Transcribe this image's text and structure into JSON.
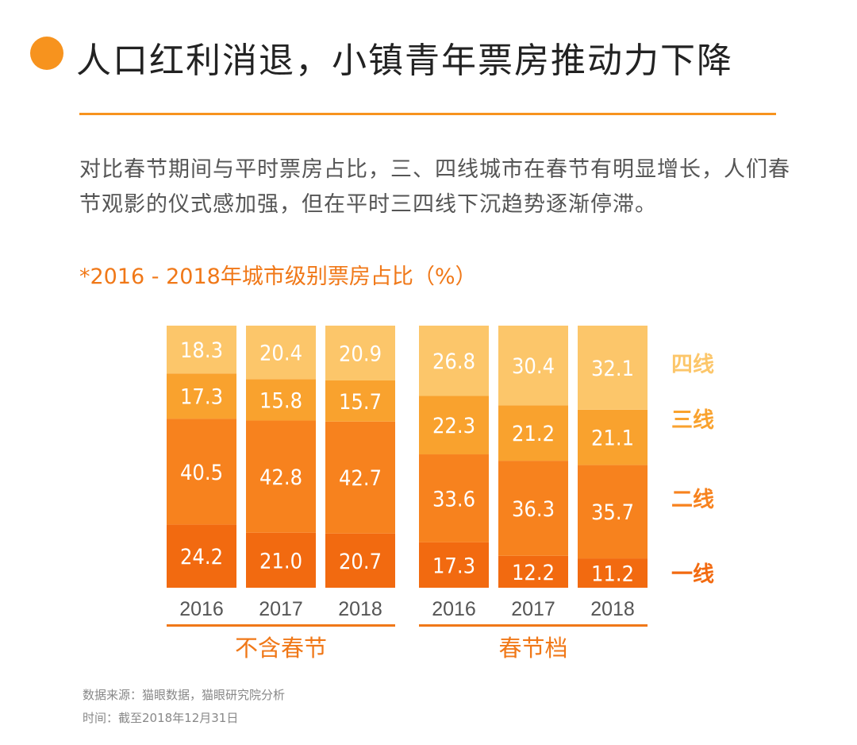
{
  "header": {
    "title": "人口红利消退，小镇青年票房推动力下降",
    "description": "对比春节期间与平时票房占比，三、四线城市在春节有明显增长，人们春节观影的仪式感加强，但在平时三四线下沉趋势逐渐停滞。"
  },
  "chart_data": {
    "type": "bar",
    "stacked": true,
    "title": "*2016 - 2018年城市级别票房占比（%）",
    "categories": [
      "2016",
      "2017",
      "2018",
      "2016",
      "2017",
      "2018"
    ],
    "groups": [
      {
        "label": "不含春节",
        "category_indices": [
          0,
          1,
          2
        ]
      },
      {
        "label": "春节档",
        "category_indices": [
          3,
          4,
          5
        ]
      }
    ],
    "series": [
      {
        "name": "一线",
        "values": [
          24.2,
          21.0,
          20.7,
          17.3,
          12.2,
          11.2
        ],
        "color": "#f26a10"
      },
      {
        "name": "二线",
        "values": [
          40.5,
          42.8,
          42.7,
          33.6,
          36.3,
          35.7
        ],
        "color": "#f7821e"
      },
      {
        "name": "三线",
        "values": [
          17.3,
          15.8,
          15.7,
          22.3,
          21.2,
          21.1
        ],
        "color": "#f9a22e"
      },
      {
        "name": "四线",
        "values": [
          18.3,
          20.4,
          20.9,
          26.8,
          30.4,
          32.1
        ],
        "color": "#fcc66a"
      }
    ],
    "value_labels": [
      [
        "24.2",
        "21.0",
        "20.7",
        "17.3",
        "12.2",
        "11.2"
      ],
      [
        "40.5",
        "42.8",
        "42.7",
        "33.6",
        "36.3",
        "35.7"
      ],
      [
        "17.3",
        "15.8",
        "15.7",
        "22.3",
        "21.2",
        "21.1"
      ],
      [
        "18.3",
        "20.4",
        "20.9",
        "26.8",
        "30.4",
        "32.1"
      ]
    ],
    "legend_position": "right",
    "ylim": [
      0,
      100
    ],
    "grid": false
  },
  "footer": {
    "source": "数据来源：猫眼数据，猫眼研究院分析",
    "time": "时间：截至2018年12月31日"
  },
  "colors": {
    "accent": "#f7931e",
    "label_orange": "#f07818"
  }
}
